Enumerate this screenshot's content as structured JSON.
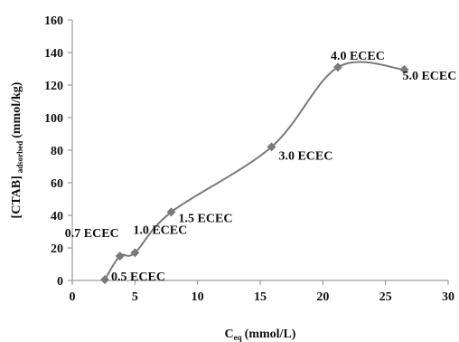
{
  "chart_data": {
    "type": "scatter",
    "xlabel": "C",
    "xlabel_sub": "eq",
    "xlabel_units": "(mmol/L)",
    "ylabel": "[CTAB]",
    "ylabel_sub": "adsorbed",
    "ylabel_units": "(mmol/kg)",
    "xlim": [
      0,
      30
    ],
    "ylim": [
      0,
      160
    ],
    "xticks": [
      "0",
      "5",
      "10",
      "15",
      "20",
      "25",
      "30"
    ],
    "yticks": [
      "0",
      "20",
      "40",
      "60",
      "80",
      "100",
      "120",
      "140",
      "160"
    ],
    "grid": false,
    "line_style": "smoothed",
    "marker": "diamond",
    "color": "#7a7a7a",
    "points": [
      {
        "x": 2.6,
        "y": 0.5,
        "label": "0.5 ECEC"
      },
      {
        "x": 3.8,
        "y": 15,
        "label": "0.7 ECEC"
      },
      {
        "x": 5.0,
        "y": 17,
        "label": "1.0 ECEC"
      },
      {
        "x": 7.9,
        "y": 42,
        "label": "1.5 ECEC"
      },
      {
        "x": 15.9,
        "y": 82,
        "label": "3.0 ECEC"
      },
      {
        "x": 21.2,
        "y": 131,
        "label": "4.0 ECEC"
      },
      {
        "x": 26.5,
        "y": 129.5,
        "label": "5.0 ECEC"
      }
    ]
  }
}
